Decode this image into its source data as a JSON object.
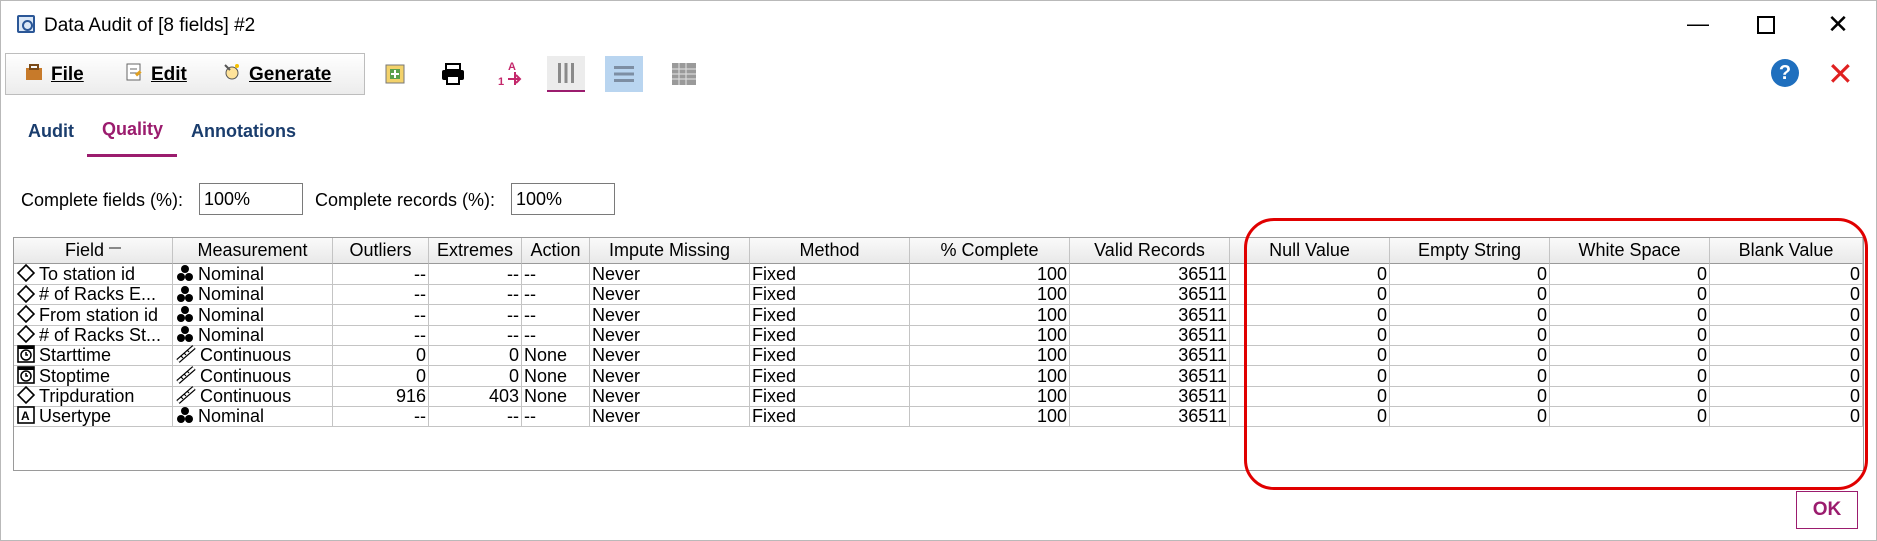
{
  "window": {
    "title": "Data Audit of [8 fields] #2"
  },
  "menu": {
    "file": "File",
    "edit": "Edit",
    "generate": "Generate"
  },
  "toolbar": {
    "icons": [
      "add-to-stream-icon",
      "print-icon",
      "sort-icon",
      "column-view-icon",
      "row-view-icon",
      "grid-view-icon"
    ]
  },
  "tabs": [
    {
      "label": "Audit"
    },
    {
      "label": "Quality"
    },
    {
      "label": "Annotations"
    }
  ],
  "complete": {
    "fields_label": "Complete fields (%):",
    "fields_value": "100%",
    "records_label": "Complete records (%):",
    "records_value": "100%"
  },
  "table": {
    "headers": [
      "Field",
      "Measurement",
      "Outliers",
      "Extremes",
      "Action",
      "Impute Missing",
      "Method",
      "% Complete",
      "Valid Records",
      "Null Value",
      "Empty String",
      "White Space",
      "Blank Value"
    ],
    "rows": [
      {
        "type": "nominal",
        "icon": "diamond-icon",
        "field": "To station id",
        "meas": "Nominal",
        "outliers": "--",
        "extremes": "--",
        "action": "--",
        "impute": "Never",
        "method": "Fixed",
        "complete": "100",
        "valid": "36511",
        "null": "0",
        "empty": "0",
        "white": "0",
        "blank": "0"
      },
      {
        "type": "nominal",
        "icon": "diamond-icon",
        "field": "# of Racks E...",
        "meas": "Nominal",
        "outliers": "--",
        "extremes": "--",
        "action": "--",
        "impute": "Never",
        "method": "Fixed",
        "complete": "100",
        "valid": "36511",
        "null": "0",
        "empty": "0",
        "white": "0",
        "blank": "0"
      },
      {
        "type": "nominal",
        "icon": "diamond-icon",
        "field": "From station id",
        "meas": "Nominal",
        "outliers": "--",
        "extremes": "--",
        "action": "--",
        "impute": "Never",
        "method": "Fixed",
        "complete": "100",
        "valid": "36511",
        "null": "0",
        "empty": "0",
        "white": "0",
        "blank": "0"
      },
      {
        "type": "nominal",
        "icon": "diamond-icon",
        "field": "# of Racks St...",
        "meas": "Nominal",
        "outliers": "--",
        "extremes": "--",
        "action": "--",
        "impute": "Never",
        "method": "Fixed",
        "complete": "100",
        "valid": "36511",
        "null": "0",
        "empty": "0",
        "white": "0",
        "blank": "0"
      },
      {
        "type": "continuous",
        "icon": "clock-icon",
        "field": "Starttime",
        "meas": "Continuous",
        "outliers": "0",
        "extremes": "0",
        "action": "None",
        "impute": "Never",
        "method": "Fixed",
        "complete": "100",
        "valid": "36511",
        "null": "0",
        "empty": "0",
        "white": "0",
        "blank": "0"
      },
      {
        "type": "continuous",
        "icon": "clock-icon",
        "field": "Stoptime",
        "meas": "Continuous",
        "outliers": "0",
        "extremes": "0",
        "action": "None",
        "impute": "Never",
        "method": "Fixed",
        "complete": "100",
        "valid": "36511",
        "null": "0",
        "empty": "0",
        "white": "0",
        "blank": "0"
      },
      {
        "type": "continuous",
        "icon": "diamond-icon",
        "field": "Tripduration",
        "meas": "Continuous",
        "outliers": "916",
        "extremes": "403",
        "action": "None",
        "impute": "Never",
        "method": "Fixed",
        "complete": "100",
        "valid": "36511",
        "null": "0",
        "empty": "0",
        "white": "0",
        "blank": "0"
      },
      {
        "type": "nominal",
        "icon": "text-type-icon",
        "field": "Usertype",
        "meas": "Nominal",
        "outliers": "--",
        "extremes": "--",
        "action": "--",
        "impute": "Never",
        "method": "Fixed",
        "complete": "100",
        "valid": "36511",
        "null": "0",
        "empty": "0",
        "white": "0",
        "blank": "0"
      }
    ]
  },
  "footer": {
    "ok": "OK"
  },
  "colors": {
    "accent": "#9b1c6e",
    "highlight": "#e00000",
    "help": "#1f6fbe"
  }
}
